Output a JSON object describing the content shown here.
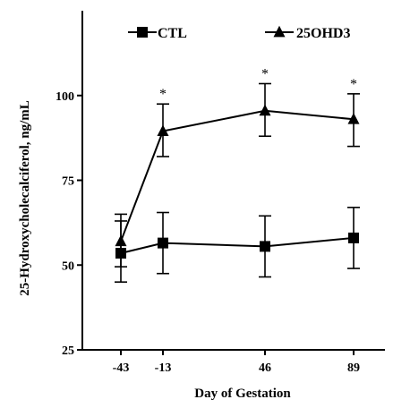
{
  "chart_data": {
    "type": "line",
    "title": "",
    "xlabel": "Day of Gestation",
    "ylabel": "25-Hydroxycholecalciferol, ng/mL",
    "categories": [
      "-43",
      "-13",
      "46",
      "89"
    ],
    "x": [
      -43,
      -13,
      46,
      89
    ],
    "ylim": [
      25,
      125
    ],
    "yticks": [
      25,
      50,
      75,
      100
    ],
    "grid": false,
    "legend_position": "top",
    "series": [
      {
        "name": "CTL",
        "marker": "square",
        "values": [
          53.5,
          56.5,
          55.5,
          58.0
        ],
        "error_upper": [
          63.0,
          65.5,
          64.5,
          67.0
        ],
        "error_lower": [
          45.0,
          47.5,
          46.5,
          49.0
        ]
      },
      {
        "name": "25OHD3",
        "marker": "triangle",
        "values": [
          57.0,
          89.5,
          95.5,
          93.0
        ],
        "error_upper": [
          65.0,
          97.5,
          103.5,
          100.5
        ],
        "error_lower": [
          49.5,
          82.0,
          88.0,
          85.0
        ]
      }
    ],
    "annotations": [
      {
        "x": -13,
        "text": "*"
      },
      {
        "x": 46,
        "text": "*"
      },
      {
        "x": 89,
        "text": "*"
      }
    ]
  }
}
